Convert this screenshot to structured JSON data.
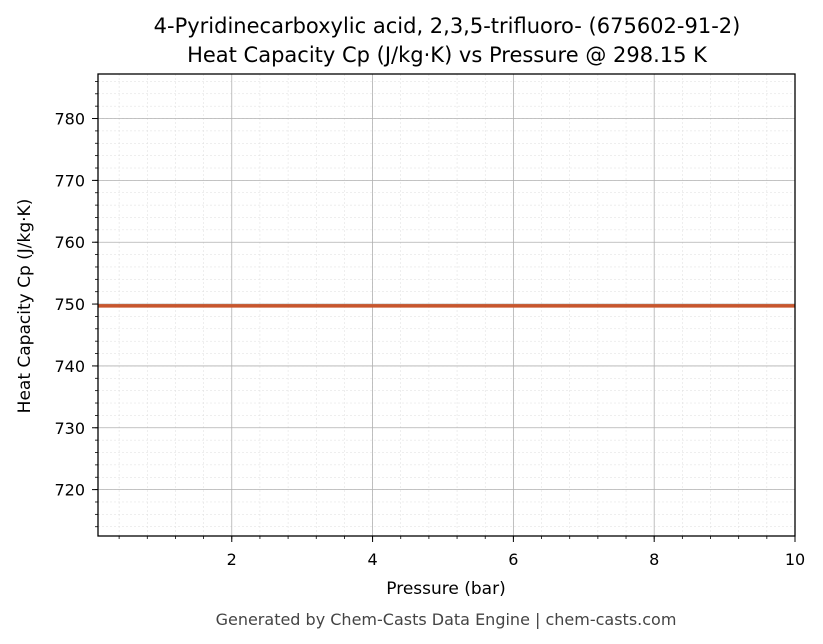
{
  "chart_data": {
    "type": "line",
    "title": "4-Pyridinecarboxylic acid, 2,3,5-trifluoro- (675602-91-2)",
    "subtitle": "Heat Capacity Cp (J/kg·K) vs Pressure @ 298.15 K",
    "xlabel": "Pressure (bar)",
    "ylabel": "Heat Capacity Cp (J/kg·K)",
    "xlim": [
      0.1,
      10
    ],
    "ylim": [
      712.5,
      787.2
    ],
    "x_ticks": [
      2,
      4,
      6,
      8,
      10
    ],
    "y_ticks": [
      720,
      730,
      740,
      750,
      760,
      770,
      780
    ],
    "x_tick_labels": [
      "2",
      "4",
      "6",
      "8",
      "10"
    ],
    "y_tick_labels": [
      "720",
      "730",
      "740",
      "750",
      "760",
      "770",
      "780"
    ],
    "grid": true,
    "minor_grid": true,
    "series": [
      {
        "color": "#c8562d",
        "x": [
          0.1,
          1,
          2,
          3,
          4,
          5,
          6,
          7,
          8,
          9,
          10
        ],
        "y": [
          749.7,
          749.7,
          749.7,
          749.7,
          749.7,
          749.7,
          749.7,
          749.7,
          749.7,
          749.7,
          749.7
        ]
      }
    ]
  },
  "footer": "Generated by Chem-Casts Data Engine | chem-casts.com"
}
